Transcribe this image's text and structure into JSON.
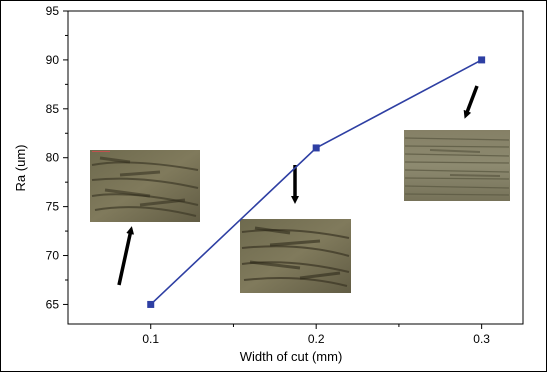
{
  "chart_data": {
    "type": "line",
    "title": "",
    "xlabel": "Width of cut (mm)",
    "ylabel": "Ra (um)",
    "x": [
      0.1,
      0.2,
      0.3
    ],
    "x_tick_labels": [
      "0.1",
      "0.2",
      "0.3"
    ],
    "xlim": [
      0.05,
      0.325
    ],
    "ylim": [
      63,
      95
    ],
    "y_ticks": [
      65,
      70,
      75,
      80,
      85,
      90,
      95
    ],
    "y_tick_labels": [
      "65",
      "70",
      "75",
      "80",
      "85",
      "90",
      "95"
    ],
    "grid": false,
    "series": [
      {
        "values": [
          65,
          81,
          90
        ],
        "color": "#2e3fa3",
        "marker": "square"
      }
    ],
    "annotations": [
      {
        "type": "micrograph-inset",
        "points_to": 0.1,
        "arrow": "up"
      },
      {
        "type": "micrograph-inset",
        "points_to": 0.2,
        "arrow": "down"
      },
      {
        "type": "micrograph-inset",
        "points_to": 0.3,
        "arrow": "down-left"
      }
    ]
  }
}
